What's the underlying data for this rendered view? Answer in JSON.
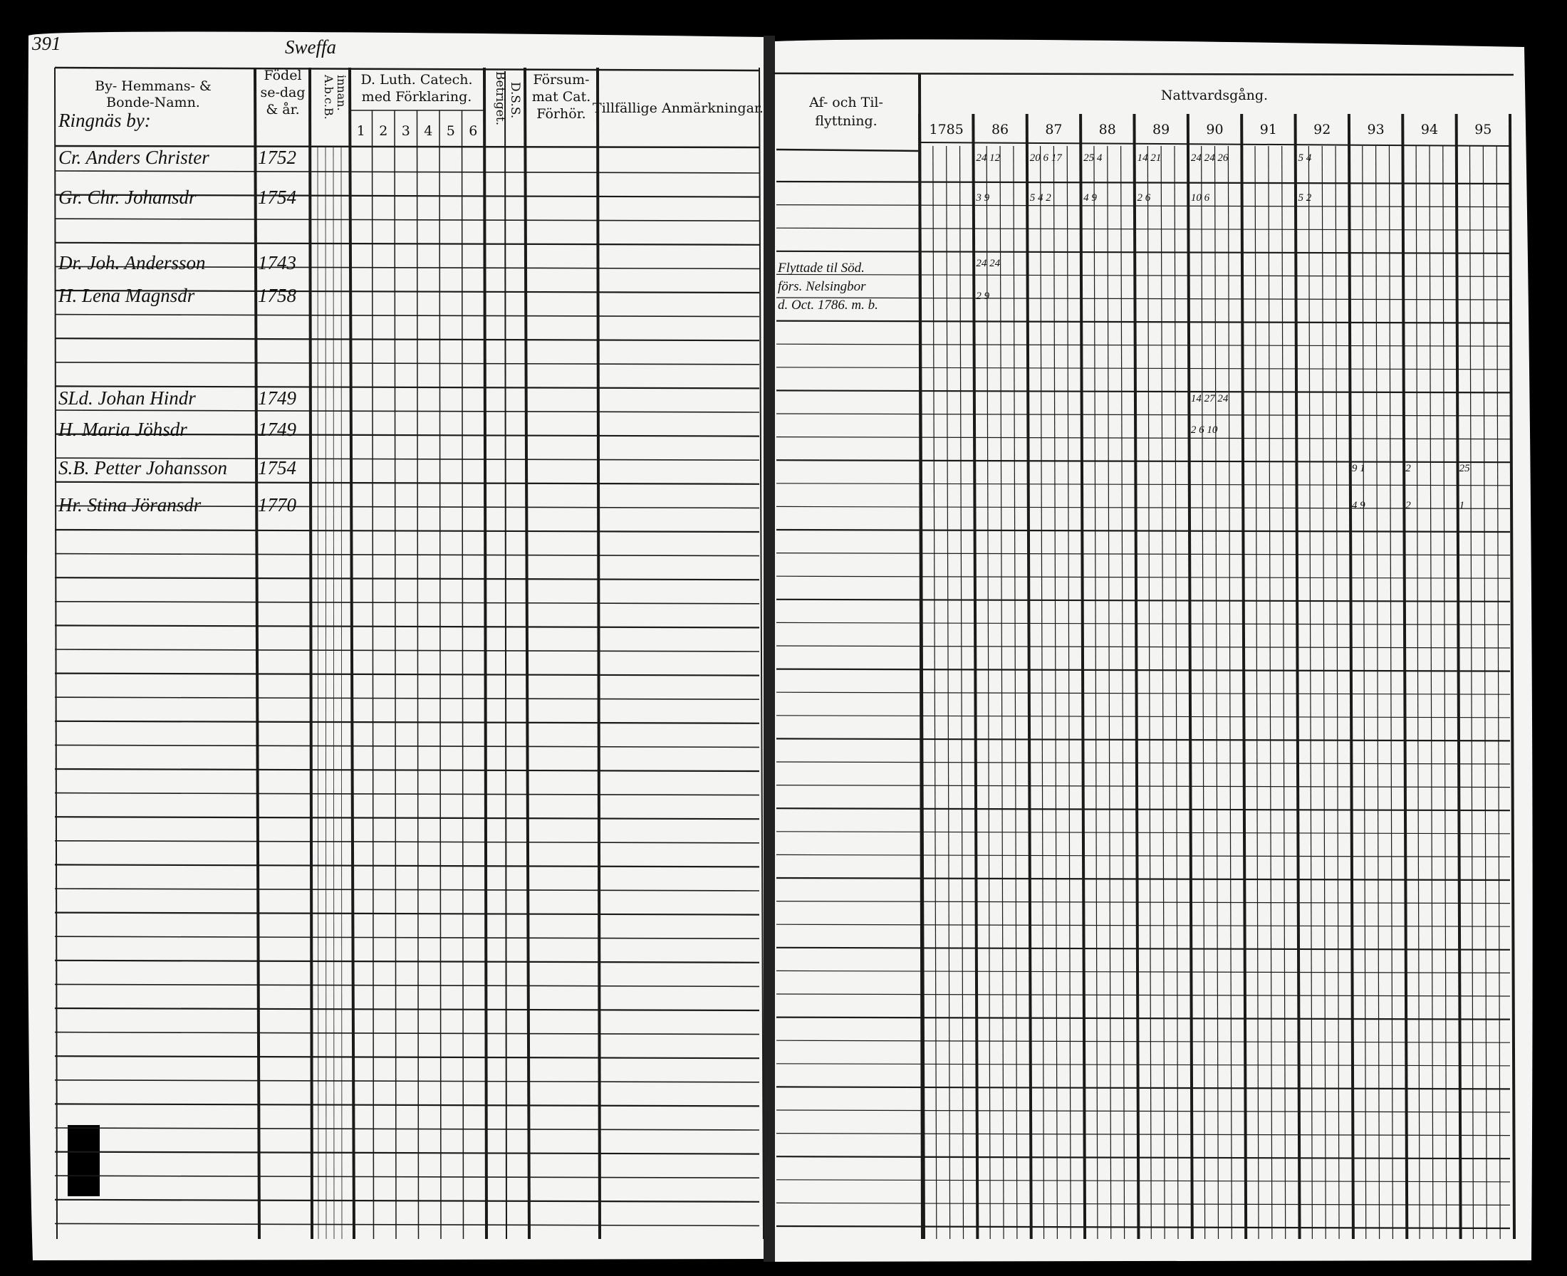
{
  "page_number": "391",
  "village": "Sweffa",
  "left_headers": {
    "name": [
      "By- Hemmans- &",
      "Bonde-Namn."
    ],
    "birth": [
      "Födel",
      "se-dag",
      "& år."
    ],
    "abc": [
      "A.b.c.B.",
      "innan."
    ],
    "catechism": [
      "D. Luth. Catech.",
      "med Förklaring."
    ],
    "catechism_columns": [
      "1",
      "2",
      "3",
      "4",
      "5",
      "6"
    ],
    "dss": "D.S.S.",
    "betriget": "Betriget.",
    "neglected": [
      "Försum-",
      "mat Cat.",
      "Förhör."
    ],
    "remarks": "Tillfällige Anmärkningar."
  },
  "right_headers": {
    "moving": [
      "Af- och Til-",
      "flyttning."
    ],
    "communion": "Nattvardsgång.",
    "years": [
      "1785",
      "86",
      "87",
      "88",
      "89",
      "90",
      "91",
      "92",
      "93",
      "94",
      "95"
    ]
  },
  "rows": [
    {
      "name": "Ringnäs by:"
    },
    {
      "name": "Cr. Anders Christer",
      "year": "1752",
      "communion": [
        null,
        "24 12",
        "20 6 17",
        "25 4",
        "14 21",
        "24 24 26",
        null,
        "5 4",
        null,
        null,
        null
      ]
    },
    {
      "name": "Gr. Chr. Johansdr",
      "year": "1754",
      "communion": [
        null,
        "3 9",
        "5 4 2",
        "4 9",
        "2 6",
        "10 6",
        null,
        "5 2",
        null,
        null,
        null
      ]
    },
    {
      "name": "Dr. Joh. Andersson",
      "year": "1743",
      "communion": [
        null,
        "24 24",
        null,
        null,
        null,
        null,
        null,
        null,
        null,
        null,
        null
      ]
    },
    {
      "name": "H. Lena Magnsdr",
      "year": "1758",
      "communion": [
        null,
        "2 9",
        null,
        null,
        null,
        null,
        null,
        null,
        null,
        null,
        null
      ]
    },
    {
      "name": "SLd. Johan Hindr",
      "year": "1749",
      "communion": [
        null,
        null,
        null,
        null,
        null,
        "14 27 24",
        null,
        null,
        null,
        null,
        null
      ]
    },
    {
      "name": "H. Maria Jöhsdr",
      "year": "1749",
      "communion": [
        null,
        null,
        null,
        null,
        null,
        "2 6 10",
        null,
        null,
        null,
        null,
        null
      ]
    },
    {
      "name": "S.B. Petter Johansson",
      "year": "1754",
      "communion": [
        null,
        null,
        null,
        null,
        null,
        null,
        null,
        null,
        "9 1",
        "2",
        "25"
      ]
    },
    {
      "name": "Hr. Stina Jöransdr",
      "year": "1770",
      "communion": [
        null,
        null,
        null,
        null,
        null,
        null,
        null,
        null,
        "4 9",
        "2",
        "1"
      ]
    }
  ],
  "moving_note": [
    "Flyttade til Söd.",
    "förs. Nelsingbor",
    "d. Oct. 1786. m. b."
  ]
}
